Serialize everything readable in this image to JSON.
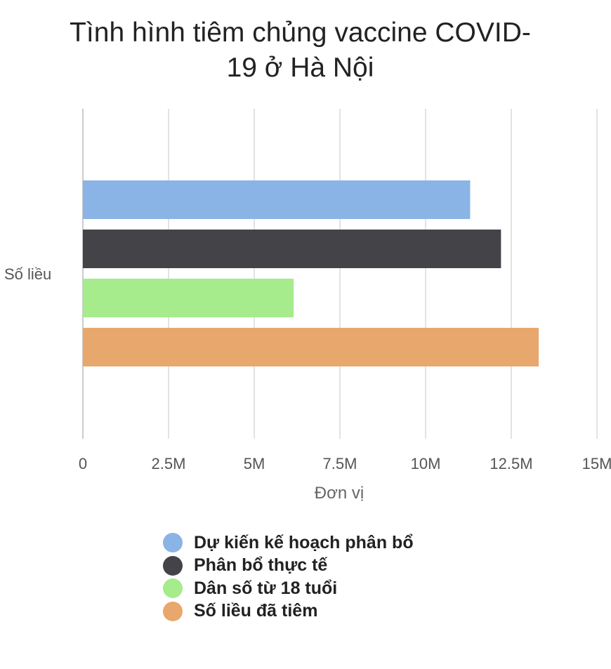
{
  "chart_data": {
    "type": "bar",
    "orientation": "horizontal",
    "title_lines": [
      "Tình hình tiêm chủng vaccine COVID-",
      "19 ở Hà Nội"
    ],
    "xlabel": "Đơn vị",
    "categories": [
      "Số liều"
    ],
    "xlim": [
      0,
      15000000
    ],
    "ticks": [
      0,
      2500000,
      5000000,
      7500000,
      10000000,
      12500000,
      15000000
    ],
    "tick_labels": [
      "0",
      "2.5M",
      "5M",
      "7.5M",
      "10M",
      "12.5M",
      "15M"
    ],
    "grid": true,
    "legend_position": "bottom",
    "series": [
      {
        "name": "Dự kiến kế hoạch phân bổ",
        "color": "#8ab4e6",
        "values": [
          11300000
        ]
      },
      {
        "name": "Phân bổ thực tế",
        "color": "#434348",
        "values": [
          12200000
        ]
      },
      {
        "name": "Dân số từ 18 tuổi",
        "color": "#a6eb8c",
        "values": [
          6150000
        ]
      },
      {
        "name": "Số liều đã tiêm",
        "color": "#e8a76c",
        "values": [
          13300000
        ]
      }
    ]
  }
}
